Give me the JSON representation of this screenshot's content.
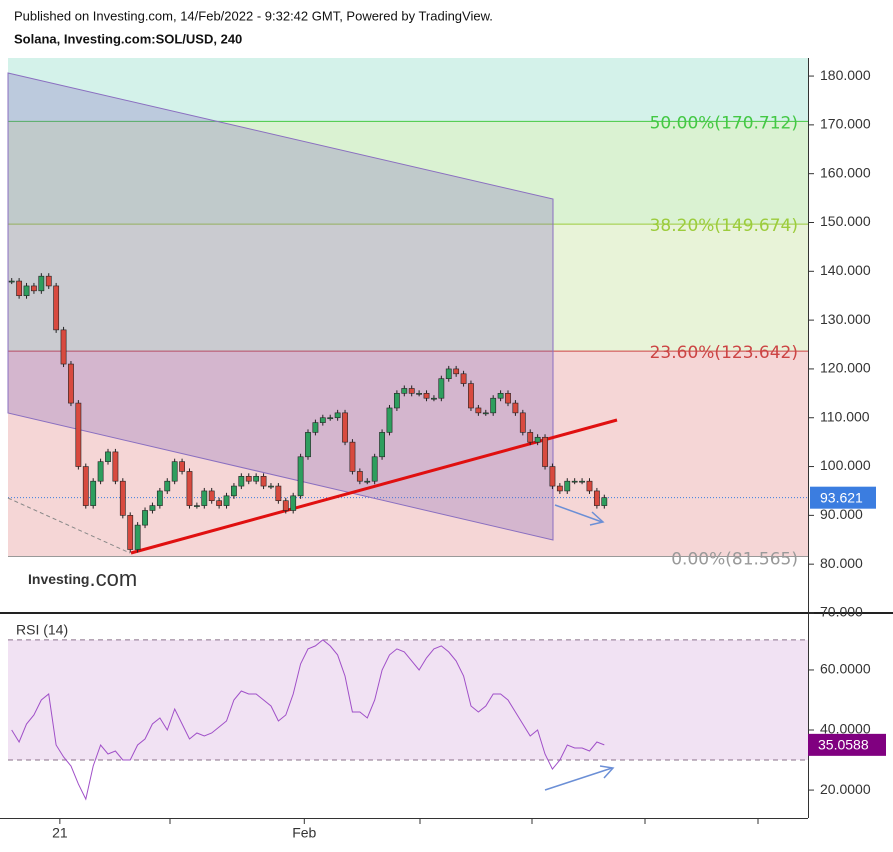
{
  "header": {
    "published": "Published on Investing.com, 14/Feb/2022 - 9:32:42 GMT, Powered by TradingView.",
    "symbol": "Solana, Investing.com:SOL/USD, 240"
  },
  "logo": {
    "brand": "Investing",
    "suffix": ".com"
  },
  "chart_data": [
    {
      "type": "candlestick",
      "color_up": "#2e9e5e",
      "color_down": "#d84a3f",
      "last_color": "#3b7de0",
      "values": [
        138,
        135,
        137,
        136,
        139,
        137,
        128,
        121,
        113,
        100,
        92,
        97,
        101,
        103,
        97,
        90,
        83,
        88,
        91,
        92,
        95,
        97,
        101,
        99,
        92,
        92,
        95,
        93,
        92,
        94,
        96,
        98,
        97,
        98,
        96,
        96,
        93,
        91,
        94,
        102,
        107,
        109,
        110,
        110,
        111,
        105,
        99,
        97,
        97,
        102,
        107,
        112,
        115,
        116,
        115,
        115,
        114,
        114,
        118,
        120,
        119,
        117,
        112,
        111,
        111,
        114,
        115,
        113,
        111,
        107,
        105,
        106,
        100,
        96,
        95,
        97,
        97,
        97,
        95,
        92,
        93.621
      ],
      "xlim": [
        0,
        108
      ],
      "ylim": [
        70.2,
        183.7
      ],
      "yticks": [
        {
          "value": 70,
          "label": "70.000"
        },
        {
          "value": 80,
          "label": "80.000"
        },
        {
          "value": 90,
          "label": "90.000"
        },
        {
          "value": 100,
          "label": "100.000"
        },
        {
          "value": 110,
          "label": "110.000"
        },
        {
          "value": 120,
          "label": "120.000"
        },
        {
          "value": 130,
          "label": "130.000"
        },
        {
          "value": 140,
          "label": "140.000"
        },
        {
          "value": 150,
          "label": "150.000"
        },
        {
          "value": 160,
          "label": "160.000"
        },
        {
          "value": 170,
          "label": "170.000"
        },
        {
          "value": 180,
          "label": "180.000"
        }
      ],
      "fib_levels": [
        {
          "value": 81.565,
          "label": "0.00%(81.565)",
          "color": "#999999",
          "fill": "#f5d6d6"
        },
        {
          "value": 123.642,
          "label": "23.60%(123.642)",
          "color": "#cc4444",
          "fill": "#e8f3d8"
        },
        {
          "value": 149.674,
          "label": "38.20%(149.674)",
          "color": "#9ccc3c",
          "fill": "#daf2d2"
        },
        {
          "value": 170.712,
          "label": "50.00%(170.712)",
          "color": "#44c844",
          "fill": "#d4f2ea"
        }
      ]
    },
    {
      "type": "line",
      "title": "RSI (14)",
      "color": "#a050c8",
      "last_color": "#800080",
      "levels": [
        30,
        70
      ],
      "band_fill": "#f1e2f3",
      "values": [
        40,
        36,
        42,
        45,
        50,
        52,
        35,
        31,
        28,
        22,
        17,
        28,
        35,
        32,
        33,
        30,
        30,
        35,
        37,
        42,
        44,
        40,
        47,
        42,
        37,
        39,
        38,
        39,
        41,
        43,
        50,
        53,
        52,
        52,
        50,
        48,
        43,
        45,
        52,
        62,
        67,
        68,
        70,
        68,
        65,
        58,
        46,
        46,
        44,
        50,
        60,
        65,
        67,
        66,
        63,
        60,
        64,
        67,
        68,
        66,
        63,
        58,
        48,
        46,
        48,
        52,
        52,
        50,
        46,
        42,
        38,
        40,
        32,
        27,
        30,
        35,
        34,
        34,
        33,
        36,
        35.0588
      ],
      "ylim": [
        10.7,
        78.3
      ],
      "yticks": [
        {
          "value": 20,
          "label": "20.0000"
        },
        {
          "value": 40,
          "label": "40.0000"
        },
        {
          "value": 60,
          "label": "60.0000"
        }
      ],
      "xticks": [
        {
          "value": 7,
          "label": "21"
        },
        {
          "value": 40,
          "label": "Feb"
        }
      ]
    }
  ]
}
